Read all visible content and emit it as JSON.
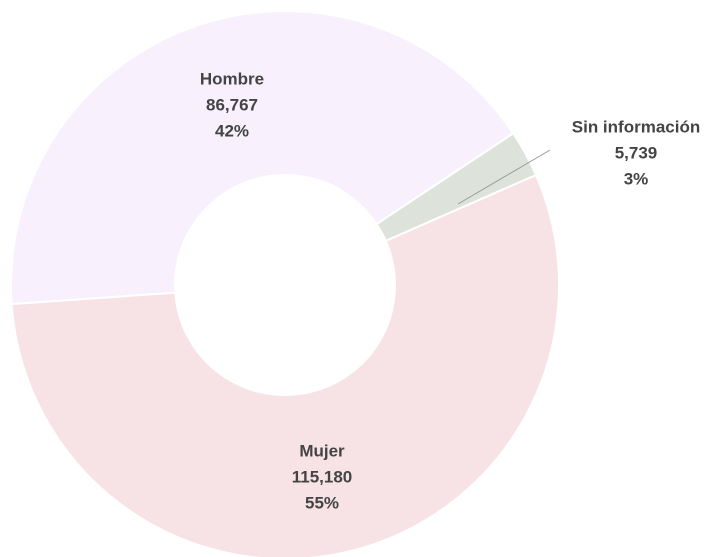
{
  "chart_data": {
    "type": "donut",
    "categories": [
      "Hombre",
      "Sin información",
      "Mujer"
    ],
    "values": [
      86767,
      5739,
      115180
    ],
    "value_labels": [
      "86,767",
      "5,739",
      "115,180"
    ],
    "percentages": [
      42,
      3,
      55
    ],
    "percentage_labels": [
      "42%",
      "3%",
      "55%"
    ],
    "colors": [
      "#f8f0fc",
      "#dde3da",
      "#f7e3e5"
    ]
  }
}
